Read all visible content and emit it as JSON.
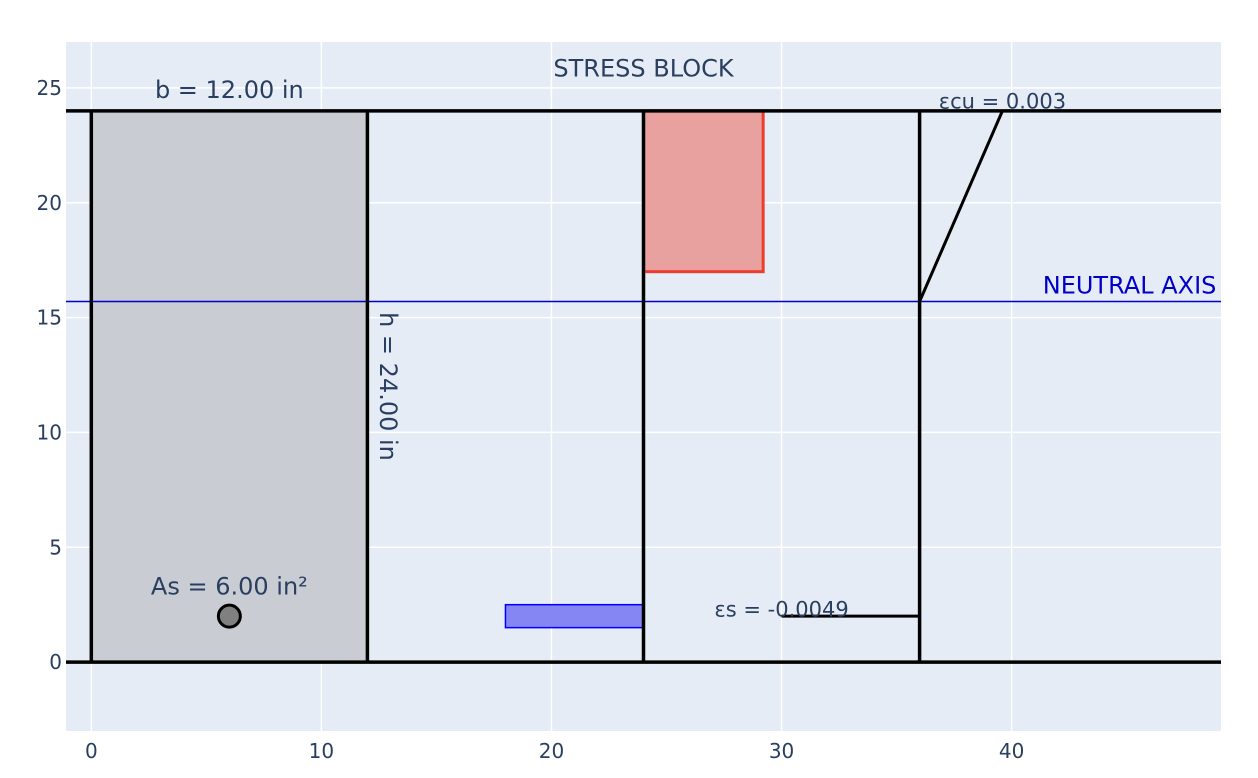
{
  "chart_data": {
    "type": "scatter",
    "title": "",
    "xlabel": "",
    "ylabel": "",
    "xlim": [
      -1.1,
      49.1
    ],
    "ylim": [
      -3,
      27
    ],
    "grid": true,
    "x_ticks": [
      0,
      10,
      20,
      30,
      40
    ],
    "y_ticks": [
      0,
      5,
      10,
      15,
      20,
      25
    ],
    "colors": {
      "plot_bg": "#e5ecf6",
      "grid": "#ffffff",
      "outline": "#000000",
      "section_fill": "#c9ccd3",
      "stress_fill": "#e8a19f",
      "stress_edge": "#ee3b2c",
      "steel_fill": "#8585f4",
      "steel_edge": "#0000ff",
      "neutral_axis": "#0000c8",
      "text": "#2a3f5f"
    },
    "section": {
      "x": [
        0,
        12
      ],
      "y": [
        0,
        24
      ]
    },
    "rebar": {
      "x": 6,
      "y": 2
    },
    "horizontal_lines": [
      0,
      24
    ],
    "vertical_lines": [
      0,
      12,
      24,
      36
    ],
    "stress_block": {
      "x": [
        24,
        29.2
      ],
      "y": [
        17,
        24
      ]
    },
    "steel_force": {
      "x": [
        18,
        24
      ],
      "y": [
        1.5,
        2.5
      ]
    },
    "neutral_axis_y": 15.7,
    "strain_profile": {
      "compression": [
        [
          36,
          15.7
        ],
        [
          39.6,
          24
        ]
      ],
      "tension": [
        [
          30,
          2
        ],
        [
          36,
          2
        ]
      ]
    },
    "annotations": {
      "width": {
        "text": "b = 12.00 in",
        "x": 6,
        "y": 24.9
      },
      "height": {
        "text": "h = 24.00 in",
        "x": 12.9,
        "y": 12
      },
      "steel_area": {
        "text": "As = 6.00 in²",
        "x": 6,
        "y": 3.3
      },
      "stress_block": {
        "text": "STRESS BLOCK",
        "x": 24,
        "y": 25.5
      },
      "concrete_strain": {
        "text": "εcu = 0.003",
        "x": 39.6,
        "y": 24.4
      },
      "neutral_axis": {
        "text": "NEUTRAL AXIS",
        "x": 48.9,
        "y": 16.4
      },
      "steel_strain": {
        "text": "εs = -0.0049",
        "x": 30,
        "y": 2.3
      }
    }
  }
}
